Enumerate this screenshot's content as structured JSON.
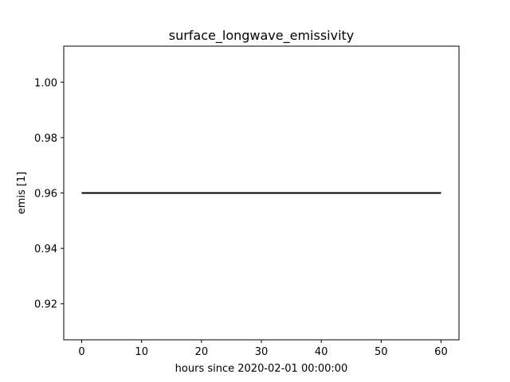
{
  "chart_data": {
    "type": "line",
    "title": "surface_longwave_emissivity",
    "xlabel": "hours since 2020-02-01 00:00:00",
    "ylabel": "emis [1]",
    "xlim": [
      -3,
      63
    ],
    "ylim": [
      0.907,
      1.013
    ],
    "xticks": [
      0,
      10,
      20,
      30,
      40,
      50,
      60
    ],
    "xtick_labels": [
      "0",
      "10",
      "20",
      "30",
      "40",
      "50",
      "60"
    ],
    "yticks": [
      0.92,
      0.94,
      0.96,
      0.98,
      1.0
    ],
    "ytick_labels": [
      "0.92",
      "0.94",
      "0.96",
      "0.98",
      "1.00"
    ],
    "grid": false,
    "series": [
      {
        "color": "#000000",
        "x": [
          0,
          60
        ],
        "y": [
          0.96,
          0.96
        ]
      }
    ]
  }
}
